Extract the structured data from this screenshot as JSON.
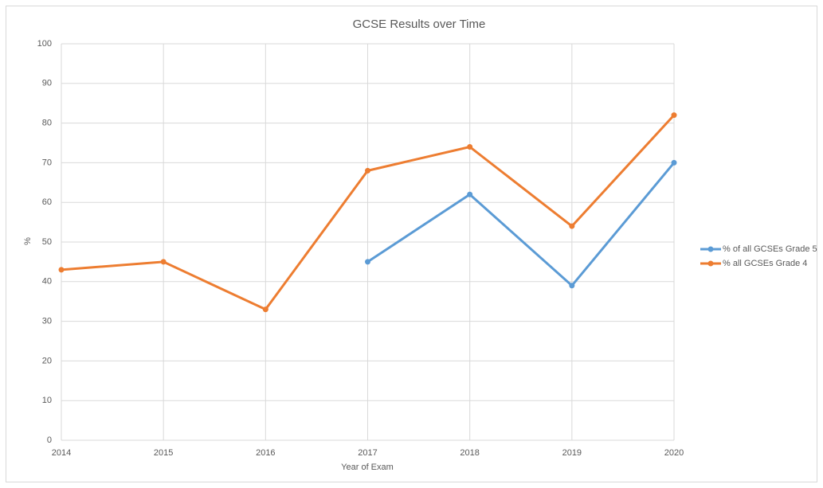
{
  "chart_data": {
    "type": "line",
    "title": "GCSE Results over Time",
    "x_label": "Year of Exam",
    "y_label": "%",
    "x": [
      2014,
      2015,
      2016,
      2017,
      2018,
      2019,
      2020
    ],
    "xlim": [
      2014,
      2020
    ],
    "xticks": [
      2014,
      2015,
      2016,
      2017,
      2018,
      2019,
      2020
    ],
    "ylim": [
      0,
      100
    ],
    "yticks": [
      0,
      10,
      20,
      30,
      40,
      50,
      60,
      70,
      80,
      90,
      100
    ],
    "grid": true,
    "legend": "right",
    "series": [
      {
        "name": "% of all GCSEs Grade 5",
        "color": "#5b9bd5",
        "values": [
          null,
          null,
          null,
          45,
          62,
          39,
          70
        ]
      },
      {
        "name": "% all GCSEs Grade 4",
        "color": "#ed7d31",
        "values": [
          43,
          45,
          33,
          68,
          74,
          54,
          82
        ]
      }
    ]
  }
}
